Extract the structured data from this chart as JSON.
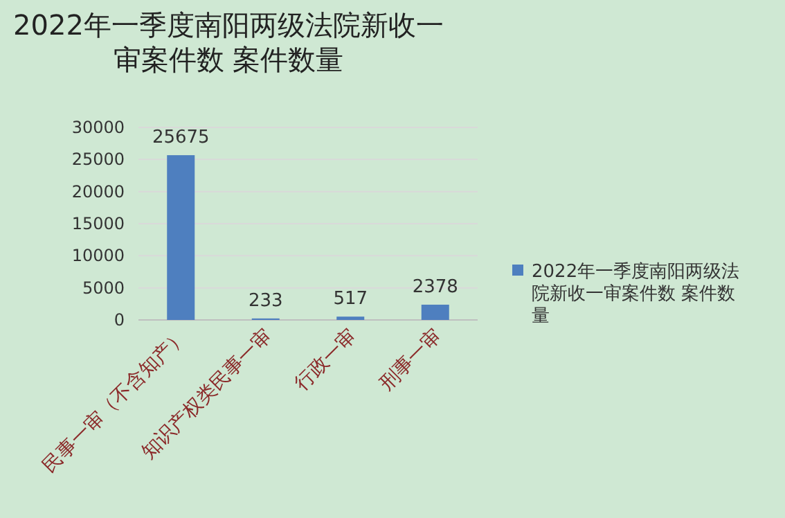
{
  "chart_data": {
    "type": "bar",
    "title": "2022年一季度南阳两级法院新收一审案件数 案件数量",
    "categories": [
      "民事一审（不含知产）",
      "知识产权类民事一审",
      "行政一审",
      "刑事一审"
    ],
    "series": [
      {
        "name": "2022年一季度南阳两级法院新收一审案件数 案件数量",
        "color": "#4e7fbf",
        "values": [
          25675,
          233,
          517,
          2378
        ]
      }
    ],
    "ylim": [
      0,
      30000
    ],
    "yticks": [
      0,
      5000,
      10000,
      15000,
      20000,
      25000,
      30000
    ],
    "grid": "y",
    "legend": "right",
    "data_labels": true
  }
}
